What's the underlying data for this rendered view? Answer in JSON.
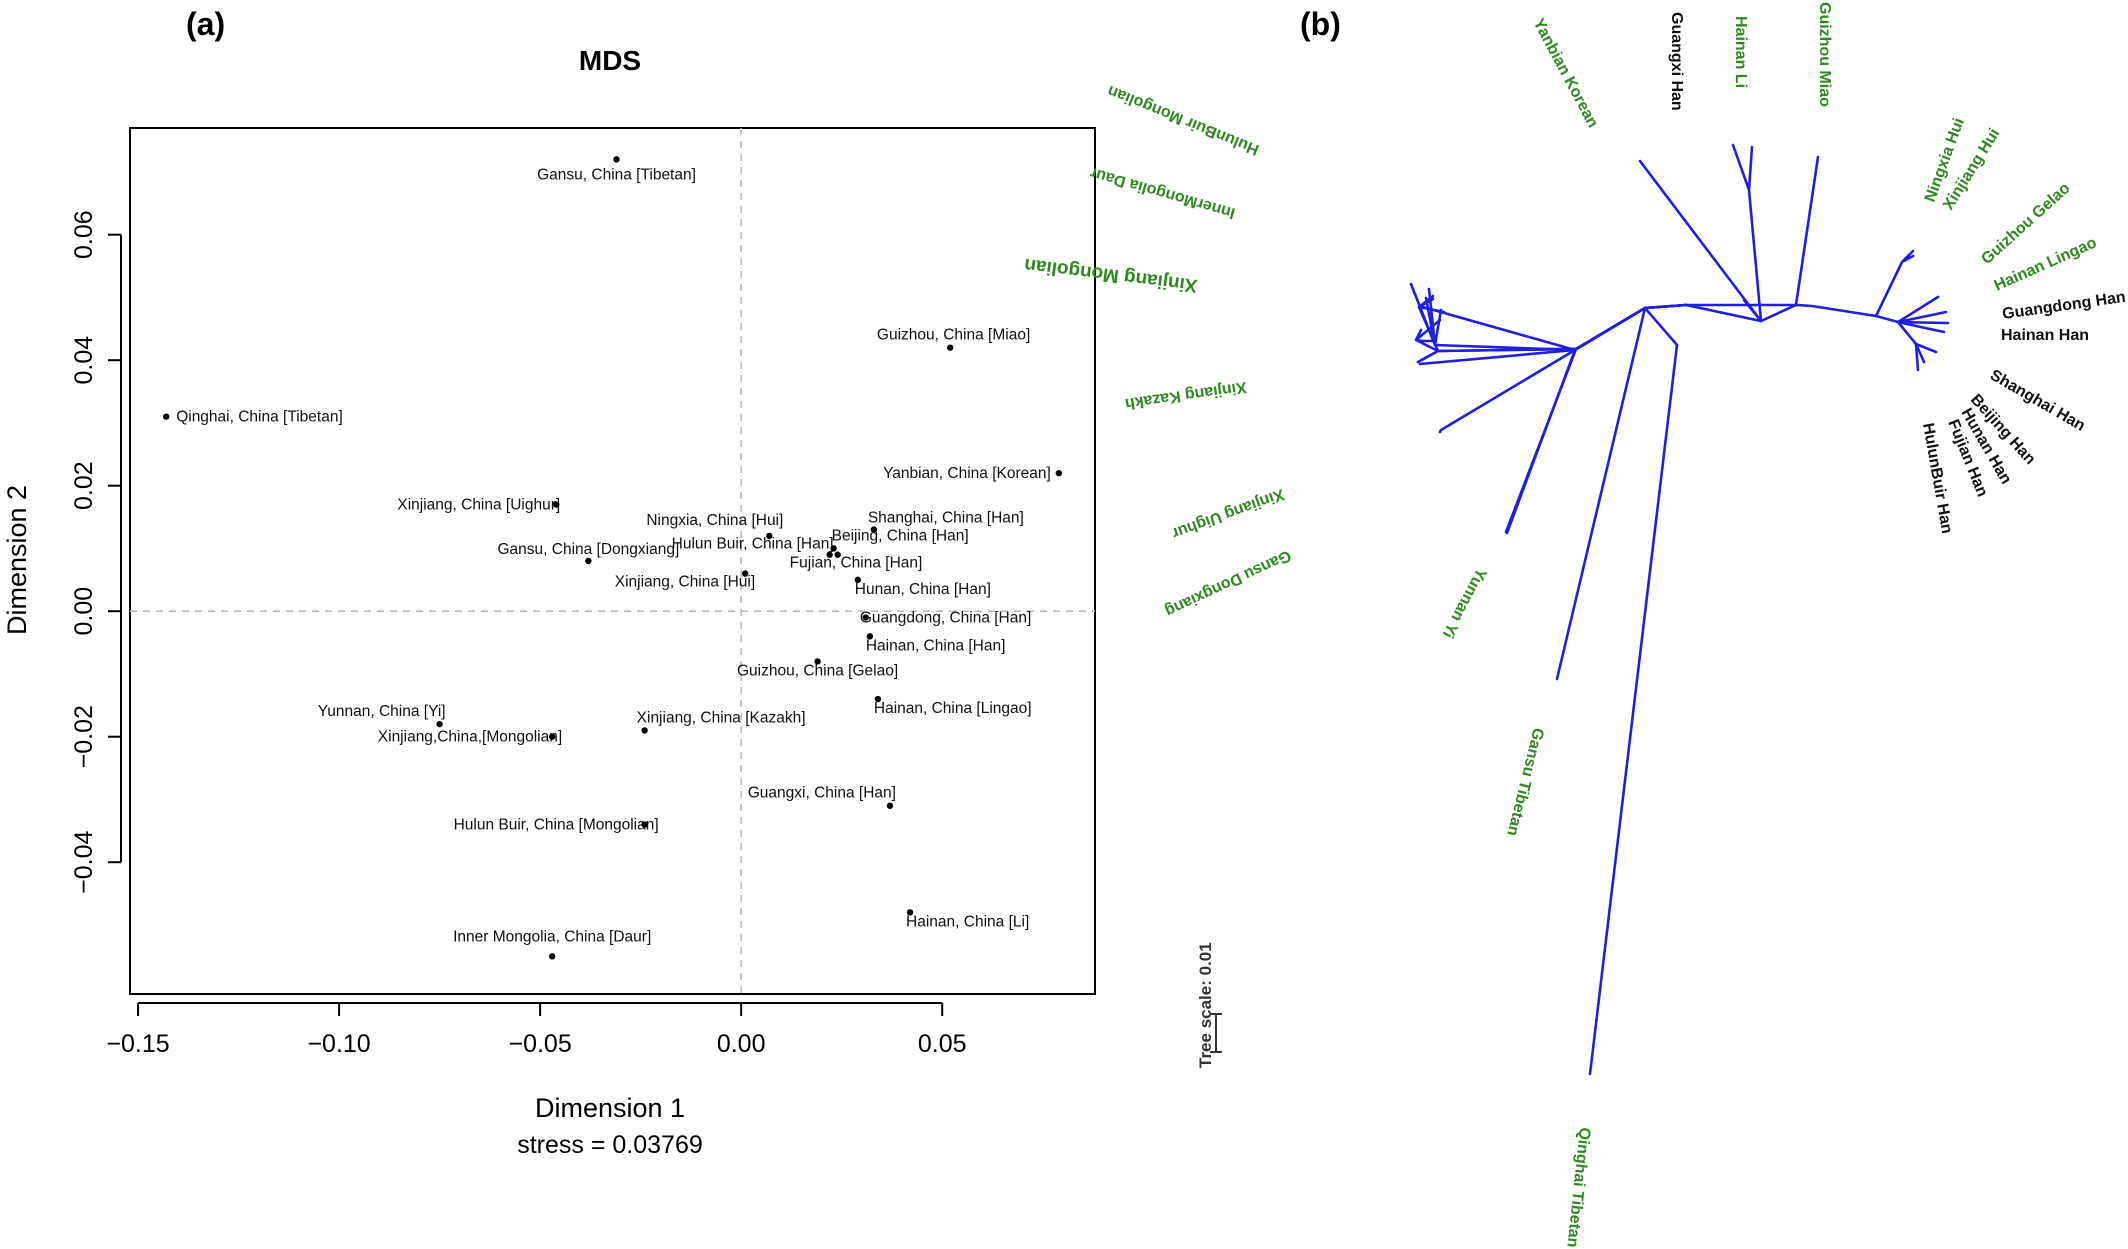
{
  "figure": {
    "panel_a_label": "(a)",
    "panel_b_label": "(b)"
  },
  "chart_data": [
    {
      "type": "scatter",
      "title": "MDS",
      "xlabel": "Dimension 1",
      "ylabel": "Dimension 2",
      "subtitle": "stress = 0.03769",
      "xlim": [
        -0.152,
        0.088
      ],
      "ylim": [
        -0.061,
        0.077
      ],
      "xticks": [
        -0.15,
        -0.1,
        -0.05,
        0.0,
        0.05
      ],
      "xticklabels": [
        "−0.15",
        "−0.10",
        "−0.05",
        "0.00",
        "0.05"
      ],
      "yticks": [
        -0.04,
        -0.02,
        0.0,
        0.02,
        0.04,
        0.06
      ],
      "yticklabels": [
        "−0.04",
        "−0.02",
        "0.00",
        "0.02",
        "0.04",
        "0.06"
      ],
      "reference_lines": {
        "x": 0,
        "y": 0,
        "style": "dashed"
      },
      "points": [
        {
          "label": "Gansu, China [Tibetan]",
          "x": -0.031,
          "y": 0.072
        },
        {
          "label": "Guizhou, China [Miao]",
          "x": 0.052,
          "y": 0.042
        },
        {
          "label": "Qinghai, China [Tibetan]",
          "x": -0.143,
          "y": 0.031
        },
        {
          "label": "Yanbian, China [Korean]",
          "x": 0.079,
          "y": 0.022
        },
        {
          "label": "Xinjiang, China [Uighur]",
          "x": -0.046,
          "y": 0.017
        },
        {
          "label": "Ningxia, China [Hui]",
          "x": 0.007,
          "y": 0.012
        },
        {
          "label": "Shanghai, China [Han]",
          "x": 0.033,
          "y": 0.013
        },
        {
          "label": "Hulun Buir, China [Han]",
          "x": 0.022,
          "y": 0.009
        },
        {
          "label": "Beijing, China [Han]",
          "x": 0.023,
          "y": 0.01
        },
        {
          "label": "Gansu, China [Dongxiang]",
          "x": -0.038,
          "y": 0.008
        },
        {
          "label": "Fujian, China [Han]",
          "x": 0.024,
          "y": 0.009
        },
        {
          "label": "Xinjiang, China [Hui]",
          "x": 0.001,
          "y": 0.006
        },
        {
          "label": "Hunan, China [Han]",
          "x": 0.029,
          "y": 0.005
        },
        {
          "label": "Guangdong, China [Han]",
          "x": 0.031,
          "y": -0.001
        },
        {
          "label": "Hainan, China [Han]",
          "x": 0.032,
          "y": -0.004
        },
        {
          "label": "Guizhou, China [Gelao]",
          "x": 0.019,
          "y": -0.008
        },
        {
          "label": "Hainan, China [Lingao]",
          "x": 0.034,
          "y": -0.014
        },
        {
          "label": "Yunnan, China [Yi]",
          "x": -0.075,
          "y": -0.018
        },
        {
          "label": "Xinjiang,China,[Mongolian]",
          "x": -0.047,
          "y": -0.02
        },
        {
          "label": "Xinjiang, China [Kazakh]",
          "x": -0.024,
          "y": -0.019
        },
        {
          "label": "Guangxi, China [Han]",
          "x": 0.037,
          "y": -0.031
        },
        {
          "label": "Hulun Buir, China [Mongolian]",
          "x": -0.024,
          "y": -0.034
        },
        {
          "label": "Hainan, China [Li]",
          "x": 0.042,
          "y": -0.048
        },
        {
          "label": "Inner Mongolia, China [Daur]",
          "x": -0.047,
          "y": -0.055
        }
      ]
    },
    {
      "type": "tree",
      "layout": "unrooted",
      "branch_color": "#1f1fe0",
      "label_colors": {
        "green": "#2e8a1e",
        "black": "#111111"
      },
      "scale_label": "Tree scale: 0.01",
      "leaves": [
        {
          "label": "Yanbian Korean",
          "color": "green"
        },
        {
          "label": "Guangxi Han",
          "color": "black"
        },
        {
          "label": "Hainan Li",
          "color": "green"
        },
        {
          "label": "Guizhou Miao",
          "color": "green"
        },
        {
          "label": "Ningxia Hui",
          "color": "green"
        },
        {
          "label": "Xinjiang Hui",
          "color": "green"
        },
        {
          "label": "Guizhou Gelao",
          "color": "green"
        },
        {
          "label": "Hainan Lingao",
          "color": "green"
        },
        {
          "label": "Guangdong Han",
          "color": "black"
        },
        {
          "label": "Hainan Han",
          "color": "black"
        },
        {
          "label": "Shanghai Han",
          "color": "black"
        },
        {
          "label": "Beijing Han",
          "color": "black"
        },
        {
          "label": "Hunan Han",
          "color": "black"
        },
        {
          "label": "Fujian Han",
          "color": "black"
        },
        {
          "label": "HulunBuir Han",
          "color": "black"
        },
        {
          "label": "HulunBuir Mongolian",
          "color": "green"
        },
        {
          "label": "InnerMongolia Daur",
          "color": "green"
        },
        {
          "label": "Xinjiang Mongolian",
          "color": "green"
        },
        {
          "label": "Xinjiang Kazakh",
          "color": "green"
        },
        {
          "label": "Xinjiang Uighur",
          "color": "green"
        },
        {
          "label": "Gansu Dongxiang",
          "color": "green"
        },
        {
          "label": "Yunnan Yi",
          "color": "green"
        },
        {
          "label": "Gansu Tibetan",
          "color": "green"
        },
        {
          "label": "Qinghai Tibetan",
          "color": "green"
        }
      ]
    }
  ]
}
